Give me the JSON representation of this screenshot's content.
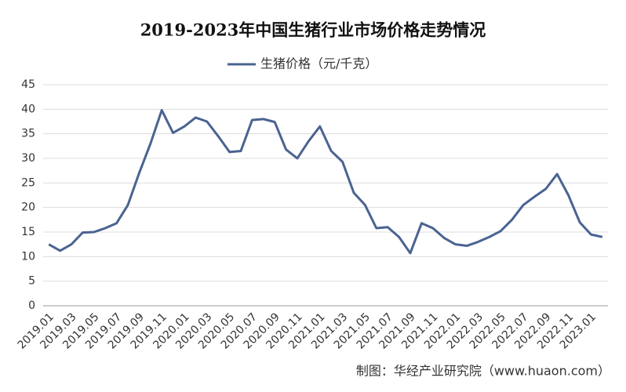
{
  "chart_data": {
    "type": "line",
    "title": "2019-2023年中国生猪行业市场价格走势情况",
    "categories": [
      "2019.01",
      null,
      "2019.03",
      null,
      "2019.05",
      null,
      "2019.07",
      null,
      "2019.09",
      null,
      "2019.11",
      null,
      "2020.01",
      null,
      "2020.03",
      null,
      "2020.05",
      null,
      "2020.07",
      null,
      "2020.09",
      null,
      "2020.11",
      null,
      "2021.01",
      null,
      "2021.03",
      null,
      "2021.05",
      null,
      "2021.07",
      null,
      "2021.09",
      null,
      "2021.11",
      null,
      "2022.01",
      null,
      "2022.03",
      null,
      "2022.05",
      null,
      "2022.07",
      null,
      "2022.09",
      null,
      "2022.11",
      null,
      "2023.01",
      null
    ],
    "series": [
      {
        "name": "生猪价格（元/千克）",
        "color": "#4a6391",
        "values": [
          12.5,
          11.2,
          12.5,
          14.9,
          15.0,
          15.8,
          16.8,
          20.5,
          27,
          33,
          39.8,
          35.2,
          36.5,
          38.3,
          37.5,
          34.5,
          31.3,
          31.5,
          37.8,
          38,
          37.4,
          31.8,
          30,
          33.5,
          36.5,
          31.5,
          29.3,
          23,
          20.5,
          15.8,
          16,
          14,
          10.7,
          16.8,
          15.8,
          13.8,
          12.5,
          12.2,
          13,
          14,
          15.2,
          17.5,
          20.5,
          22.2,
          23.8,
          26.8,
          22.5,
          17,
          14.5,
          14.0
        ]
      }
    ],
    "ylim": [
      0,
      45
    ],
    "yticks": [
      0,
      5,
      10,
      15,
      20,
      25,
      30,
      35,
      40,
      45
    ],
    "grid": true,
    "source": "制图：华经产业研究院（www.huaon.com）"
  }
}
